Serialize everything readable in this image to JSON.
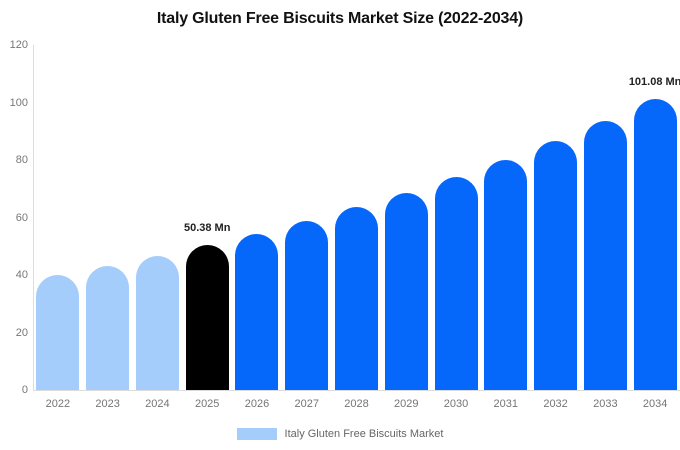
{
  "chart_data": {
    "type": "bar",
    "title": "Italy Gluten Free Biscuits Market Size (2022-2034)",
    "xlabel": "",
    "ylabel": "",
    "unit": "Mn",
    "categories": [
      "2022",
      "2023",
      "2024",
      "2025",
      "2026",
      "2027",
      "2028",
      "2029",
      "2030",
      "2031",
      "2032",
      "2033",
      "2034"
    ],
    "values": [
      39.95,
      43.16,
      46.63,
      50.38,
      54.43,
      58.81,
      63.54,
      68.65,
      74.17,
      80.13,
      86.58,
      93.54,
      101.08
    ],
    "ylim": [
      0,
      120
    ],
    "yticks": [
      0,
      20,
      40,
      60,
      80,
      100,
      120
    ],
    "grid": false,
    "bar_colors": [
      "#a4cdfb",
      "#a4cdfb",
      "#a4cdfb",
      "#000000",
      "#0667fb",
      "#0667fb",
      "#0667fb",
      "#0667fb",
      "#0667fb",
      "#0667fb",
      "#0667fb",
      "#0667fb",
      "#0667fb"
    ],
    "annotations": [
      {
        "category": "2025",
        "text": "50.38 Mn"
      },
      {
        "category": "2034",
        "text": "101.08 Mn"
      }
    ],
    "legend": {
      "position": "bottom",
      "label": "Italy Gluten Free Biscuits Market",
      "swatch_color": "#a4cdfb"
    },
    "colors": {
      "historical_bar": "#a4cdfb",
      "highlight_bar": "#000000",
      "forecast_bar": "#0667fb",
      "axis_line": "#dcdcdc",
      "tick_text": "#777777",
      "title_text": "#111111",
      "value_label_text": "#222222"
    }
  }
}
